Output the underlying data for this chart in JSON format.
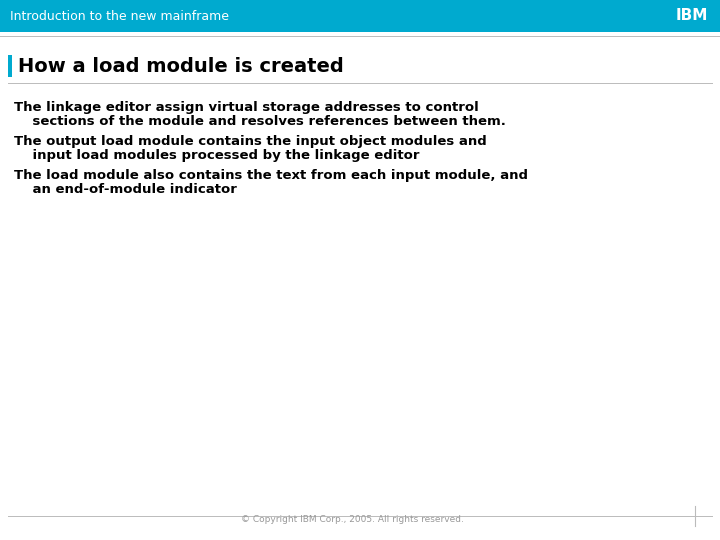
{
  "header_bg_color": "#00AACF",
  "header_text": "Introduction to the new mainframe",
  "header_text_color": "#FFFFFF",
  "header_font_size": 9,
  "ibm_logo_color": "#FFFFFF",
  "ibm_logo_font_size": 11,
  "title_text": "How a load module is created",
  "title_text_color": "#000000",
  "title_font_size": 14,
  "title_font_weight": "bold",
  "body_bg_color": "#FFFFFF",
  "separator_color": "#BBBBBB",
  "bullet_bar_color": "#00AACF",
  "bullet_bar_width": 4,
  "bullet_lines": [
    [
      "The linkage editor assign virtual storage addresses to control",
      "    sections of the module and resolves references between them."
    ],
    [
      "The output load module contains the input object modules and",
      "    input load modules processed by the linkage editor"
    ],
    [
      "The load module also contains the text from each input module, and",
      "    an end-of-module indicator"
    ]
  ],
  "body_font_size": 9.5,
  "footer_text": "© Copyright IBM Corp., 2005. All rights reserved.",
  "footer_font_size": 6.5,
  "footer_text_color": "#999999"
}
